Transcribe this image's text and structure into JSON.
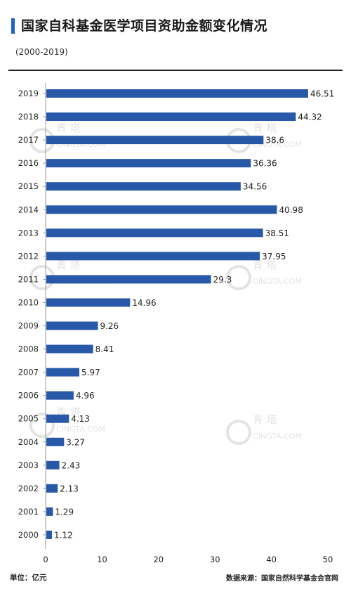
{
  "header": {
    "title": "国家自科基金医学项目资助金额变化情况",
    "subtitle": "(2000-2019)"
  },
  "footer": {
    "unit": "单位：亿元",
    "source": "数据来源：国家自然科学基金会官网"
  },
  "watermark": {
    "name": "青 塔",
    "site": "CINGTA.COM"
  },
  "colors": {
    "bar": "#2858a8",
    "accent": "#1f63c6",
    "axis": "#999999"
  },
  "chart_data": {
    "type": "bar",
    "orientation": "horizontal",
    "categories": [
      "2019",
      "2018",
      "2017",
      "2016",
      "2015",
      "2014",
      "2013",
      "2012",
      "2011",
      "2010",
      "2009",
      "2008",
      "2007",
      "2006",
      "2005",
      "2004",
      "2003",
      "2002",
      "2001",
      "2000"
    ],
    "values": [
      46.51,
      44.32,
      38.6,
      36.36,
      34.56,
      40.98,
      38.51,
      37.95,
      29.3,
      14.96,
      9.26,
      8.41,
      5.97,
      4.96,
      4.13,
      3.27,
      2.43,
      2.13,
      1.29,
      1.12
    ],
    "value_labels": [
      "46.51",
      "44.32",
      "38.6",
      "36.36",
      "34.56",
      "40.98",
      "38.51",
      "37.95",
      "29.3",
      "14.96",
      "9.26",
      "8.41",
      "5.97",
      "4.96",
      "4.13",
      "3.27",
      "2.43",
      "2.13",
      "1.29",
      "1.12"
    ],
    "xlim": [
      0,
      50
    ],
    "xticks": [
      "0",
      "10",
      "20",
      "30",
      "40",
      "50"
    ],
    "grid": false,
    "legend": "none"
  }
}
